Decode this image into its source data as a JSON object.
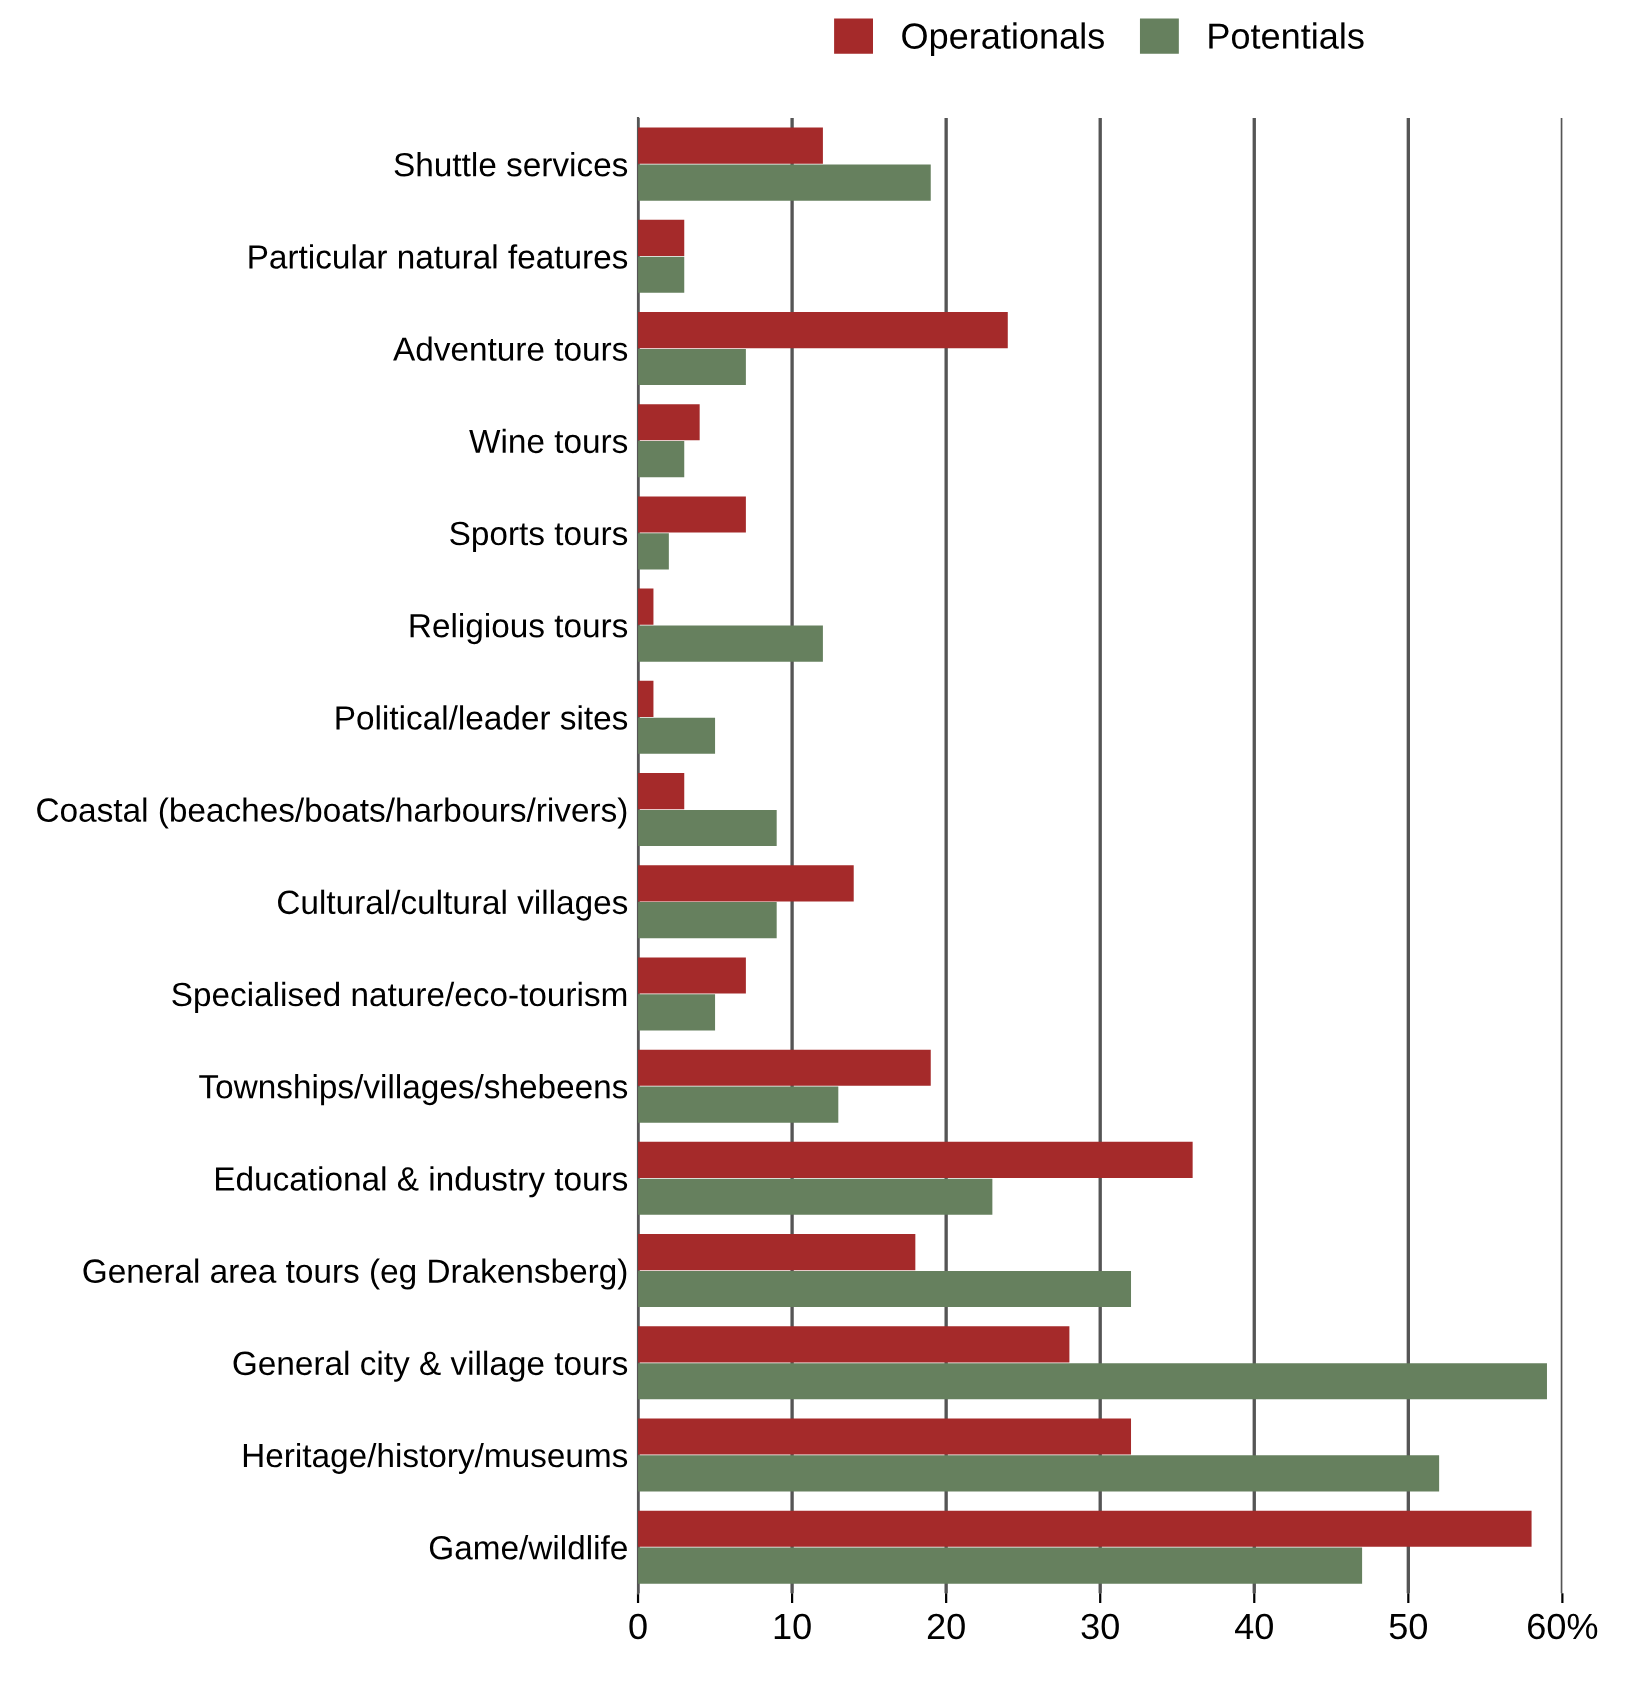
{
  "chart_data": {
    "type": "bar",
    "orientation": "horizontal",
    "categories": [
      "Shuttle services",
      "Particular natural features",
      "Adventure tours",
      "Wine tours",
      "Sports tours",
      "Religious tours",
      "Political/leader sites",
      "Coastal (beaches/boats/harbours/rivers)",
      "Cultural/cultural villages",
      "Specialised nature/eco-tourism",
      "Townships/villages/shebeens",
      "Educational & industry tours",
      "General area tours (eg Drakensberg)",
      "General city & village tours",
      "Heritage/history/museums",
      "Game/wildlife"
    ],
    "series": [
      {
        "name": "Operationals",
        "color": "#a52a2a",
        "values": [
          12,
          3,
          24,
          4,
          7,
          1,
          1,
          3,
          14,
          7,
          19,
          36,
          18,
          28,
          32,
          58
        ]
      },
      {
        "name": "Potentials",
        "color": "#66805e",
        "values": [
          19,
          3,
          7,
          3,
          2,
          12,
          5,
          9,
          9,
          5,
          13,
          23,
          32,
          59,
          52,
          47
        ]
      }
    ],
    "xlim": [
      0,
      60
    ],
    "xticks": [
      0,
      10,
      20,
      30,
      40,
      50,
      {
        "value": 60,
        "label": "60%"
      }
    ],
    "grid": "x",
    "legend": "top"
  }
}
